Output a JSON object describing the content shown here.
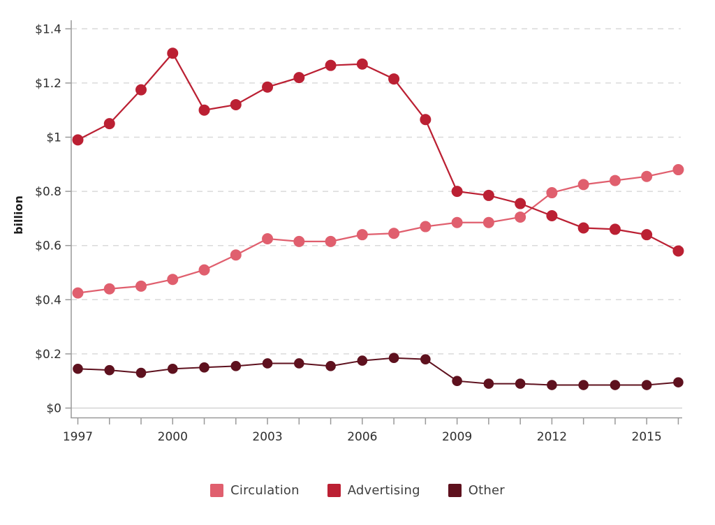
{
  "chart_data": {
    "type": "line",
    "title": "",
    "xlabel": "",
    "ylabel": "billion",
    "unit": "$ billion",
    "x": [
      1997,
      1998,
      1999,
      2000,
      2001,
      2002,
      2003,
      2004,
      2005,
      2006,
      2007,
      2008,
      2009,
      2010,
      2011,
      2012,
      2013,
      2014,
      2015,
      2016
    ],
    "x_labeled_ticks": [
      1997,
      2000,
      2003,
      2006,
      2009,
      2012,
      2015
    ],
    "x_tick_labels": [
      "1997",
      "2000",
      "2003",
      "2006",
      "2009",
      "2012",
      "2015"
    ],
    "y_ticks": [
      0,
      0.2,
      0.4,
      0.6,
      0.8,
      1.0,
      1.2,
      1.4
    ],
    "y_tick_labels": [
      "$0",
      "$0.2",
      "$0.4",
      "$0.6",
      "$0.8",
      "$1",
      "$1.2",
      "$1.4"
    ],
    "ylim": [
      0,
      1.45
    ],
    "grid": "horizontal-dashed",
    "legend_position": "bottom-center",
    "series": [
      {
        "name": "Circulation",
        "color": "#e05f6e",
        "values": [
          0.425,
          0.44,
          0.45,
          0.475,
          0.51,
          0.565,
          0.625,
          0.615,
          0.615,
          0.64,
          0.645,
          0.67,
          0.685,
          0.685,
          0.705,
          0.795,
          0.825,
          0.84,
          0.855,
          0.88
        ]
      },
      {
        "name": "Advertising",
        "color": "#bb2033",
        "values": [
          0.99,
          1.05,
          1.175,
          1.31,
          1.1,
          1.12,
          1.185,
          1.22,
          1.265,
          1.27,
          1.215,
          1.065,
          0.8,
          0.785,
          0.755,
          0.71,
          0.665,
          0.66,
          0.64,
          0.58
        ]
      },
      {
        "name": "Other",
        "color": "#5e111e",
        "values": [
          0.145,
          0.14,
          0.13,
          0.145,
          0.15,
          0.155,
          0.165,
          0.165,
          0.155,
          0.175,
          0.185,
          0.18,
          0.1,
          0.09,
          0.09,
          0.085,
          0.085,
          0.085,
          0.085,
          0.095
        ]
      }
    ],
    "colors": {
      "grid": "#d9d9d9",
      "zero_line": "#d4d4d4",
      "axis": "#999999",
      "tick_text": "#2e2e2e"
    }
  },
  "legend": {
    "items": [
      {
        "label": "Circulation"
      },
      {
        "label": "Advertising"
      },
      {
        "label": "Other"
      }
    ]
  }
}
